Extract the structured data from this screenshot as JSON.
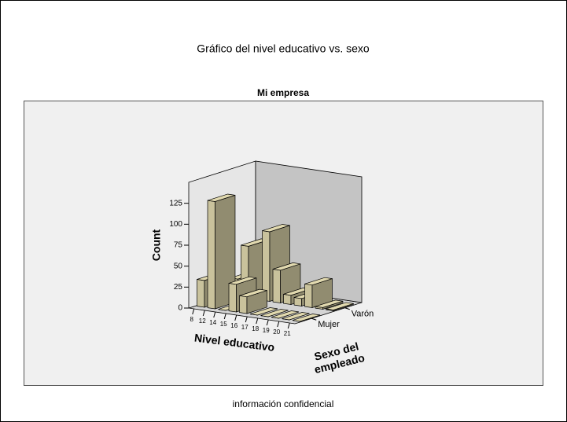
{
  "chart_data": {
    "type": "bar3d",
    "title": "Gráfico del nivel educativo vs. sexo",
    "subtitle": "Mi empresa",
    "x_label": "Nivel educativo",
    "y_label": "Count",
    "z_label": "Sexo del empleado",
    "categories": [
      "8",
      "12",
      "14",
      "15",
      "16",
      "17",
      "18",
      "19",
      "20",
      "21"
    ],
    "series": [
      {
        "name": "Mujer",
        "values": [
          32,
          128,
          0,
          33,
          20,
          0,
          0,
          0,
          0,
          0
        ]
      },
      {
        "name": "Varón",
        "values": [
          21,
          62,
          6,
          83,
          39,
          11,
          9,
          27,
          2,
          1
        ]
      }
    ],
    "color": "#c9c29c",
    "ylim": [
      0,
      150
    ],
    "yticks": [
      0,
      25,
      50,
      75,
      100,
      125
    ],
    "footer": "información confidencial"
  }
}
